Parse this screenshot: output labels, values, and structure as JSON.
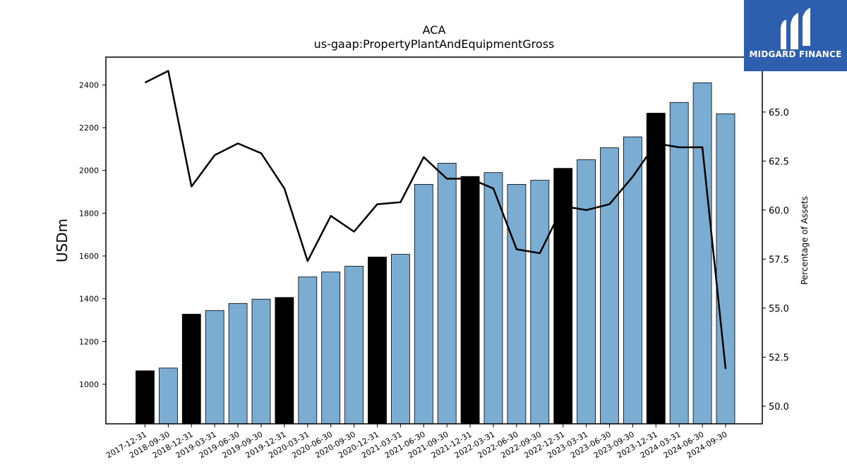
{
  "chart_data": {
    "type": "bar",
    "title": "ACA",
    "subtitle": "us-gaap:PropertyPlantAndEquipmentGross",
    "ylabel": "USDm",
    "y2label": "Percentage of Assets",
    "categories": [
      "2017-12-31",
      "2018-09-30",
      "2018-12-31",
      "2019-03-31",
      "2019-06-30",
      "2019-09-30",
      "2019-12-31",
      "2020-03-31",
      "2020-06-30",
      "2020-09-30",
      "2020-12-31",
      "2021-03-31",
      "2021-06-30",
      "2021-09-30",
      "2021-12-31",
      "2022-03-31",
      "2022-06-30",
      "2022-09-30",
      "2022-12-31",
      "2023-03-31",
      "2023-06-30",
      "2023-09-30",
      "2023-12-31",
      "2024-03-31",
      "2024-06-30",
      "2024-09-30"
    ],
    "series": [
      {
        "values": [
          1063,
          1076,
          1328,
          1345,
          1378,
          1398,
          1406,
          1502,
          1525,
          1552,
          1595,
          1608,
          1935,
          2034,
          1972,
          1990,
          1935,
          1954,
          2010,
          2050,
          2106,
          2157,
          2268,
          2318,
          2410,
          2265
        ]
      },
      {
        "axis": "secondary",
        "values": [
          66.5,
          67.1,
          61.2,
          62.8,
          63.4,
          62.9,
          61.1,
          57.4,
          59.7,
          58.9,
          60.3,
          60.4,
          62.7,
          61.6,
          61.6,
          61.1,
          58.0,
          57.8,
          60.2,
          60.0,
          60.3,
          61.7,
          63.4,
          63.2,
          63.2,
          51.9
        ]
      }
    ],
    "bar_colors": {
      "year_end": "#000000",
      "quarter": "#7bacd2"
    },
    "line_color": "#000000",
    "ylim": [
      815,
      2530
    ],
    "yticks": [
      1000,
      1200,
      1400,
      1600,
      1800,
      2000,
      2200,
      2400
    ],
    "y2lim": [
      49.1,
      67.8
    ],
    "y2ticks": [
      "50.0",
      "52.5",
      "55.0",
      "57.5",
      "60.0",
      "62.5",
      "65.0"
    ],
    "grid": false
  },
  "logo": {
    "text": "MIDGARD FINANCE"
  }
}
